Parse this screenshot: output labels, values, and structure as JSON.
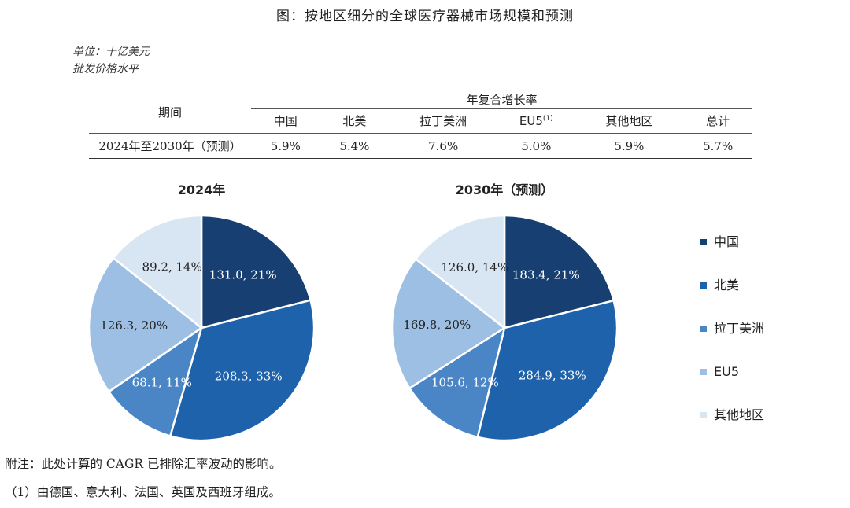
{
  "title": "图：按地区细分的全球医疗器械市场规模和预测",
  "unit_line1": "单位：十亿美元",
  "unit_line2": "批发价格水平",
  "table": {
    "period_header": "期间",
    "group_header": "年复合增长率",
    "columns": [
      "中国",
      "北美",
      "拉丁美洲",
      "EU5",
      "其他地区",
      "总计"
    ],
    "eu5_superscript": "(1)",
    "row_label": "2024年至2030年（预测）",
    "row_values": [
      "5.9%",
      "5.4%",
      "7.6%",
      "5.0%",
      "5.9%",
      "5.7%"
    ]
  },
  "colors": {
    "中国": "#183f72",
    "北美": "#1f62ac",
    "拉丁美洲": "#4a86c5",
    "EU5": "#9cbfe3",
    "其他地区": "#d8e6f4"
  },
  "chart_data": [
    {
      "type": "pie",
      "title": "2024年",
      "categories": [
        "中国",
        "北美",
        "拉丁美洲",
        "EU5",
        "其他地区"
      ],
      "values": [
        131.0,
        208.3,
        68.1,
        126.3,
        89.2
      ],
      "percentages": [
        21,
        33,
        11,
        20,
        14
      ],
      "labels": [
        "131.0, 21%",
        "208.3, 33%",
        "68.1, 11%",
        "126.3, 20%",
        "89.2, 14%"
      ]
    },
    {
      "type": "pie",
      "title": "2030年（预测）",
      "categories": [
        "中国",
        "北美",
        "拉丁美洲",
        "EU5",
        "其他地区"
      ],
      "values": [
        183.4,
        284.9,
        105.6,
        169.8,
        126.0
      ],
      "percentages": [
        21,
        33,
        12,
        20,
        14
      ],
      "labels": [
        "183.4, 21%",
        "284.9, 33%",
        "105.6, 12%",
        "169.8, 20%",
        "126.0, 14%"
      ]
    }
  ],
  "legend": [
    "中国",
    "北美",
    "拉丁美洲",
    "EU5",
    "其他地区"
  ],
  "notes": {
    "note1": "附注：此处计算的 CAGR 已排除汇率波动的影响。",
    "note2": "（1）由德国、意大利、法国、英国及西班牙组成。"
  }
}
